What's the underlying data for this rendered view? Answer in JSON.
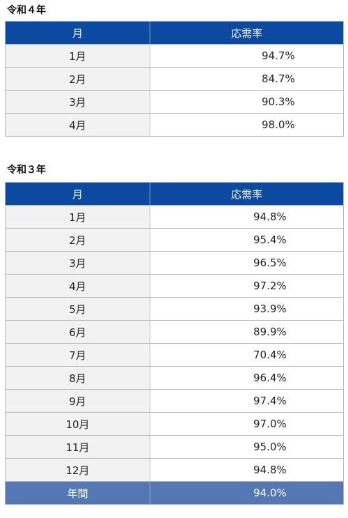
{
  "r4": {
    "title": "令和４年",
    "header_month": "月",
    "header_rate": "応需率",
    "rows": [
      {
        "month": "1月",
        "rate": "94.7%"
      },
      {
        "month": "2月",
        "rate": "84.7%"
      },
      {
        "month": "3月",
        "rate": "90.3%"
      },
      {
        "month": "4月",
        "rate": "98.0%"
      }
    ]
  },
  "r3": {
    "title": "令和３年",
    "header_month": "月",
    "header_rate": "応需率",
    "rows": [
      {
        "month": "1月",
        "rate": "94.8%"
      },
      {
        "month": "2月",
        "rate": "95.4%"
      },
      {
        "month": "3月",
        "rate": "96.5%"
      },
      {
        "month": "4月",
        "rate": "97.2%"
      },
      {
        "month": "5月",
        "rate": "93.9%"
      },
      {
        "month": "6月",
        "rate": "89.9%"
      },
      {
        "month": "7月",
        "rate": "70.4%"
      },
      {
        "month": "8月",
        "rate": "96.4%"
      },
      {
        "month": "9月",
        "rate": "97.4%"
      },
      {
        "month": "10月",
        "rate": "97.0%"
      },
      {
        "month": "11月",
        "rate": "95.0%"
      },
      {
        "month": "12月",
        "rate": "94.8%"
      }
    ],
    "total": {
      "label": "年間",
      "rate": "94.0%"
    }
  }
}
